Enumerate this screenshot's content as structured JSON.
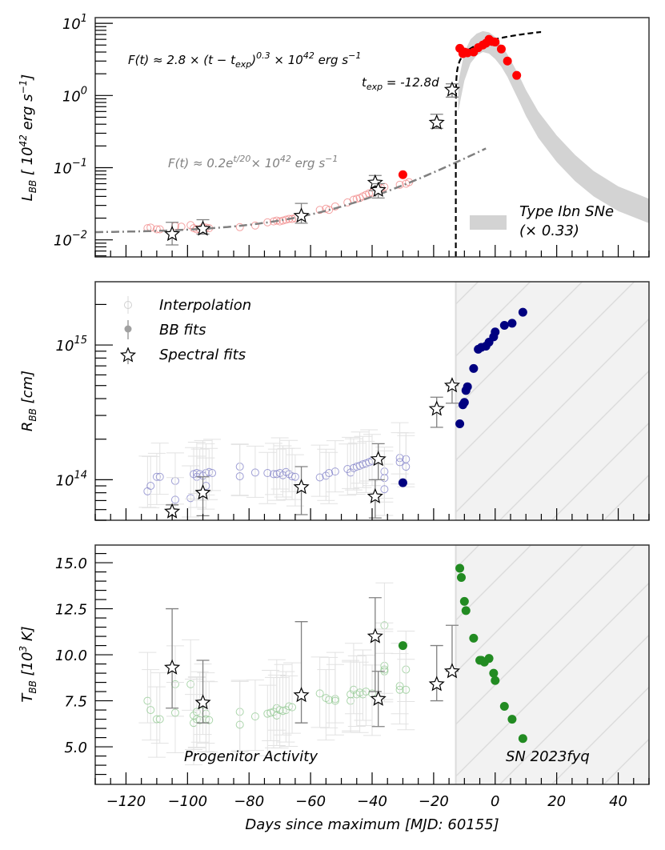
{
  "chart_data": [
    {
      "type": "scatter",
      "panel": "luminosity",
      "ylabel": "L_BB [ 10^42 erg s^-1]",
      "ylabel_parts": {
        "main": "L",
        "sub": "BB",
        "rest1": " [ 10",
        "sup": "42",
        "rest2": " erg s",
        "sup2": "−1",
        "rest3": "]"
      },
      "yscale": "log",
      "ylim": [
        0.0058,
        12
      ],
      "yticks": [
        {
          "value": 10,
          "base": "10",
          "exp": "1"
        },
        {
          "value": 1,
          "base": "10",
          "exp": "0"
        },
        {
          "value": 0.1,
          "base": "10",
          "exp": "−1"
        },
        {
          "value": 0.01,
          "base": "10",
          "exp": "−2"
        }
      ],
      "annotations": {
        "powerlaw": {
          "prefix": "F(t)  ≈ 2.8 × (t − t",
          "sub": "exp",
          "mid": ")",
          "sup": "0.3",
          "suffix": " × 10",
          "sup2": "42",
          "unit": " erg s",
          "sup3": "−1"
        },
        "texp": {
          "prefix": "t",
          "sub": "exp",
          "suffix": " = -12.8d"
        },
        "exp_fit": {
          "prefix": "F(t)  ≈ 0.2e",
          "sup": "t/20",
          "mid": "× 10",
          "sup2": "42",
          "unit": " erg s",
          "sup3": "−1"
        },
        "legend_band": {
          "line1": "Type Ibn SNe",
          "line2": "(× 0.33)"
        }
      },
      "interpolation": [
        [
          -113,
          0.0145
        ],
        [
          -112,
          0.0148
        ],
        [
          -110,
          0.014
        ],
        [
          -109,
          0.014
        ],
        [
          -104,
          0.0155
        ],
        [
          -102,
          0.0152
        ],
        [
          -99,
          0.016
        ],
        [
          -98,
          0.0145
        ],
        [
          -97,
          0.014
        ],
        [
          -96,
          0.014
        ],
        [
          -95,
          0.015
        ],
        [
          -94,
          0.0148
        ],
        [
          -93,
          0.0145
        ],
        [
          -83,
          0.015
        ],
        [
          -78,
          0.0158
        ],
        [
          -74,
          0.0175
        ],
        [
          -72,
          0.018
        ],
        [
          -71,
          0.0185
        ],
        [
          -70,
          0.018
        ],
        [
          -69,
          0.0185
        ],
        [
          -68,
          0.019
        ],
        [
          -67,
          0.0195
        ],
        [
          -66,
          0.0195
        ],
        [
          -65,
          0.02
        ],
        [
          -57,
          0.026
        ],
        [
          -55,
          0.027
        ],
        [
          -54,
          0.026
        ],
        [
          -52,
          0.029
        ],
        [
          -48,
          0.033
        ],
        [
          -46,
          0.036
        ],
        [
          -45,
          0.037
        ],
        [
          -44,
          0.038
        ],
        [
          -43,
          0.04
        ],
        [
          -42,
          0.042
        ],
        [
          -41,
          0.044
        ],
        [
          -40,
          0.045
        ],
        [
          -38,
          0.05
        ],
        [
          -37,
          0.052
        ],
        [
          -36,
          0.054
        ],
        [
          -31,
          0.058
        ],
        [
          -29,
          0.06
        ],
        [
          -28,
          0.063
        ]
      ],
      "bb_fits": [
        [
          -30,
          0.08
        ],
        [
          -11.5,
          4.5
        ],
        [
          -10.5,
          3.8
        ],
        [
          -10,
          4.0
        ],
        [
          -9,
          3.9
        ],
        [
          -7,
          4.0
        ],
        [
          -5.5,
          4.6
        ],
        [
          -4,
          5.0
        ],
        [
          -3,
          5.3
        ],
        [
          -2,
          6.0
        ],
        [
          -1,
          5.6
        ],
        [
          0,
          5.5
        ],
        [
          2,
          4.4
        ],
        [
          4,
          3.0
        ],
        [
          7,
          1.9
        ]
      ],
      "spectral_fits": [
        [
          -105,
          0.012,
          0.0085,
          0.0175
        ],
        [
          -95,
          0.0142,
          0.012,
          0.019
        ],
        [
          -63,
          0.0215,
          0.017,
          0.032
        ],
        [
          -39,
          0.062,
          0.048,
          0.078
        ],
        [
          -38,
          0.049,
          0.038,
          0.06
        ],
        [
          -19,
          0.42,
          0.35,
          0.55
        ],
        [
          -14,
          1.2,
          0.95,
          1.45
        ]
      ],
      "fits": {
        "exp_curve": {
          "label": "F(t) ≈ 0.2e^{t/20}",
          "amplitude": 0.2,
          "tau": 20,
          "range": [
            -130,
            -3
          ]
        },
        "powerlaw_curve": {
          "amplitude": 2.8,
          "index": 0.3,
          "t_exp": -12.8,
          "range": [
            -12.8,
            15
          ]
        }
      },
      "comparison_band": {
        "label": "Type Ibn SNe (× 0.33)",
        "t": [
          -12,
          -10,
          -8,
          -6,
          -4,
          -2,
          0,
          2,
          4,
          6,
          8,
          10,
          14,
          20,
          26,
          32,
          40,
          50
        ],
        "upper": [
          1.5,
          4.0,
          6.0,
          7.2,
          7.8,
          7.5,
          6.5,
          5.0,
          3.7,
          2.6,
          1.8,
          1.2,
          0.6,
          0.28,
          0.15,
          0.09,
          0.055,
          0.037
        ],
        "lower": [
          0.6,
          1.6,
          2.8,
          3.6,
          4.0,
          3.8,
          3.2,
          2.5,
          1.8,
          1.2,
          0.8,
          0.52,
          0.26,
          0.12,
          0.065,
          0.04,
          0.025,
          0.017
        ]
      },
      "colors": {
        "point": "#ff0000",
        "interp": "#f08080",
        "exp_line": "#808080",
        "pl_line": "#000000",
        "band": "#d3d3d3"
      }
    },
    {
      "type": "scatter",
      "panel": "radius",
      "ylabel_parts": {
        "main": "R",
        "sub": "BB",
        "rest": " [cm]"
      },
      "yscale": "log",
      "ylim": [
        50000000000000.0,
        2950000000000000.0
      ],
      "yticks": [
        {
          "value": 1000000000000000.0,
          "base": "10",
          "exp": "15"
        },
        {
          "value": 100000000000000.0,
          "base": "10",
          "exp": "14"
        }
      ],
      "legend": [
        {
          "label": "Interpolation",
          "marker": "open-circle"
        },
        {
          "label": "BB fits",
          "marker": "filled-circle"
        },
        {
          "label": "Spectral fits",
          "marker": "star"
        }
      ],
      "interpolation": [
        [
          -113,
          82000000000000.0
        ],
        [
          -112,
          90000000000000.0
        ],
        [
          -110,
          105000000000000.0
        ],
        [
          -109,
          105000000000000.0
        ],
        [
          -104,
          98000000000000.0
        ],
        [
          -104,
          71000000000000.0
        ],
        [
          -99,
          73000000000000.0
        ],
        [
          -98,
          110000000000000.0
        ],
        [
          -97,
          105000000000000.0
        ],
        [
          -97,
          112000000000000.0
        ],
        [
          -96,
          110000000000000.0
        ],
        [
          -95,
          107000000000000.0
        ],
        [
          -94,
          112000000000000.0
        ],
        [
          -93,
          114000000000000.0
        ],
        [
          -92,
          112000000000000.0
        ],
        [
          -94,
          90000000000000.0
        ],
        [
          -83,
          125000000000000.0
        ],
        [
          -83,
          106000000000000.0
        ],
        [
          -78,
          113000000000000.0
        ],
        [
          -74,
          112000000000000.0
        ],
        [
          -72,
          110000000000000.0
        ],
        [
          -71,
          110000000000000.0
        ],
        [
          -70,
          112000000000000.0
        ],
        [
          -69,
          108000000000000.0
        ],
        [
          -68,
          114000000000000.0
        ],
        [
          -67,
          110000000000000.0
        ],
        [
          -66,
          106000000000000.0
        ],
        [
          -65,
          105000000000000.0
        ],
        [
          -57,
          104000000000000.0
        ],
        [
          -55,
          107000000000000.0
        ],
        [
          -54,
          112000000000000.0
        ],
        [
          -52,
          115000000000000.0
        ],
        [
          -48,
          120000000000000.0
        ],
        [
          -47,
          113000000000000.0
        ],
        [
          -46,
          122000000000000.0
        ],
        [
          -45,
          125000000000000.0
        ],
        [
          -44,
          127000000000000.0
        ],
        [
          -43,
          130000000000000.0
        ],
        [
          -42,
          132000000000000.0
        ],
        [
          -41,
          135000000000000.0
        ],
        [
          -40,
          138000000000000.0
        ],
        [
          -36,
          115000000000000.0
        ],
        [
          -36,
          103000000000000.0
        ],
        [
          -36,
          85000000000000.0
        ],
        [
          -31,
          145000000000000.0
        ],
        [
          -31,
          135000000000000.0
        ],
        [
          -29,
          142000000000000.0
        ],
        [
          -29,
          125000000000000.0
        ]
      ],
      "bb_fits": [
        [
          -30,
          95000000000000.0
        ],
        [
          -11.5,
          260000000000000.0
        ],
        [
          -10.5,
          360000000000000.0
        ],
        [
          -10,
          375000000000000.0
        ],
        [
          -9.5,
          460000000000000.0
        ],
        [
          -9,
          490000000000000.0
        ],
        [
          -7,
          670000000000000.0
        ],
        [
          -5.5,
          930000000000000.0
        ],
        [
          -4.5,
          960000000000000.0
        ],
        [
          -3,
          980000000000000.0
        ],
        [
          -2,
          1050000000000000.0
        ],
        [
          -0.5,
          1150000000000000.0
        ],
        [
          0,
          1250000000000000.0
        ],
        [
          3,
          1400000000000000.0
        ],
        [
          5.5,
          1450000000000000.0
        ],
        [
          9,
          1750000000000000.0
        ]
      ],
      "spectral_fits": [
        [
          -105,
          58000000000000.0,
          45000000000000.0,
          65000000000000.0
        ],
        [
          -95,
          80000000000000.0,
          54000000000000.0,
          105000000000000.0
        ],
        [
          -63,
          88000000000000.0,
          55000000000000.0,
          125000000000000.0
        ],
        [
          -39,
          75000000000000.0,
          52000000000000.0,
          100000000000000.0
        ],
        [
          -38,
          142000000000000.0,
          100000000000000.0,
          185000000000000.0
        ],
        [
          -19,
          335000000000000.0,
          245000000000000.0,
          410000000000000.0
        ],
        [
          -14,
          500000000000000.0,
          370000000000000.0,
          500000000000000.0
        ]
      ],
      "colors": {
        "point": "#000080",
        "interp": "#8080c8"
      },
      "shaded_region": {
        "from": -12.8,
        "to": 50,
        "color": "#f2f2f2",
        "hatch": "/"
      }
    },
    {
      "type": "scatter",
      "panel": "temperature",
      "ylabel_parts": {
        "main": "T",
        "sub": "BB",
        "rest1": " [10",
        "sup": "3",
        "rest2": " K]"
      },
      "xlabel": "Days since maximum [MJD: 60155]",
      "yscale": "linear",
      "ylim": [
        2.96,
        15.96
      ],
      "yticks": [
        "5.0",
        "7.5",
        "10.0",
        "12.5",
        "15.0"
      ],
      "xlim": [
        -130,
        50
      ],
      "xticks": [
        "−120",
        "−100",
        "−80",
        "−60",
        "−40",
        "−20",
        "0",
        "20",
        "40"
      ],
      "xtick_values": [
        -120,
        -100,
        -80,
        -60,
        -40,
        -20,
        0,
        20,
        40
      ],
      "region_labels": {
        "left": "Progenitor Activity",
        "right": "SN 2023fyq"
      },
      "interpolation": [
        [
          -113,
          7.5
        ],
        [
          -112,
          7.0
        ],
        [
          -110,
          6.5
        ],
        [
          -109,
          6.5
        ],
        [
          -104,
          8.4
        ],
        [
          -104,
          6.85
        ],
        [
          -99,
          8.4
        ],
        [
          -98,
          6.7
        ],
        [
          -98,
          6.3
        ],
        [
          -97,
          6.5
        ],
        [
          -97,
          6.9
        ],
        [
          -96,
          6.45
        ],
        [
          -95,
          7.3
        ],
        [
          -94,
          6.8
        ],
        [
          -94,
          6.5
        ],
        [
          -93,
          6.45
        ],
        [
          -83,
          6.9
        ],
        [
          -83,
          6.2
        ],
        [
          -78,
          6.65
        ],
        [
          -74,
          6.8
        ],
        [
          -73,
          6.85
        ],
        [
          -72,
          6.9
        ],
        [
          -71,
          7.1
        ],
        [
          -71,
          6.7
        ],
        [
          -70,
          7.0
        ],
        [
          -69,
          6.95
        ],
        [
          -68,
          7.0
        ],
        [
          -67,
          7.2
        ],
        [
          -66,
          7.15
        ],
        [
          -57,
          7.9
        ],
        [
          -55,
          7.65
        ],
        [
          -54,
          7.55
        ],
        [
          -52,
          7.6
        ],
        [
          -52,
          7.5
        ],
        [
          -47,
          7.5
        ],
        [
          -47,
          7.85
        ],
        [
          -46,
          8.1
        ],
        [
          -45,
          7.85
        ],
        [
          -44,
          7.95
        ],
        [
          -43,
          7.85
        ],
        [
          -42,
          8.0
        ],
        [
          -40,
          7.9
        ],
        [
          -36,
          11.6
        ],
        [
          -36,
          9.4
        ],
        [
          -36,
          9.1
        ],
        [
          -36,
          9.2
        ],
        [
          -31,
          8.3
        ],
        [
          -31,
          8.1
        ],
        [
          -29,
          9.2
        ],
        [
          -29,
          8.1
        ]
      ],
      "bb_fits": [
        [
          -30,
          10.5
        ],
        [
          -11.5,
          14.7
        ],
        [
          -11,
          14.2
        ],
        [
          -10,
          12.9
        ],
        [
          -9.5,
          12.4
        ],
        [
          -7,
          10.9
        ],
        [
          -5,
          9.7
        ],
        [
          -4.5,
          9.7
        ],
        [
          -3.5,
          9.6
        ],
        [
          -2,
          9.8
        ],
        [
          -0.5,
          9.0
        ],
        [
          0,
          8.6
        ],
        [
          3,
          7.2
        ],
        [
          5.5,
          6.5
        ],
        [
          9,
          5.45
        ]
      ],
      "spectral_fits": [
        [
          -105,
          9.3,
          7.1,
          12.5
        ],
        [
          -95,
          7.4,
          6.3,
          9.7
        ],
        [
          -63,
          7.8,
          6.3,
          11.8
        ],
        [
          -39,
          11.0,
          8.0,
          13.1
        ],
        [
          -38,
          7.6,
          6.1,
          9.1
        ],
        [
          -19,
          8.4,
          7.5,
          10.5
        ],
        [
          -14,
          9.1,
          9.1,
          11.6
        ]
      ],
      "colors": {
        "point": "#228b22",
        "interp": "#90c890"
      },
      "shaded_region": {
        "from": -12.8,
        "to": 50,
        "color": "#f2f2f2",
        "hatch": "/"
      }
    }
  ]
}
